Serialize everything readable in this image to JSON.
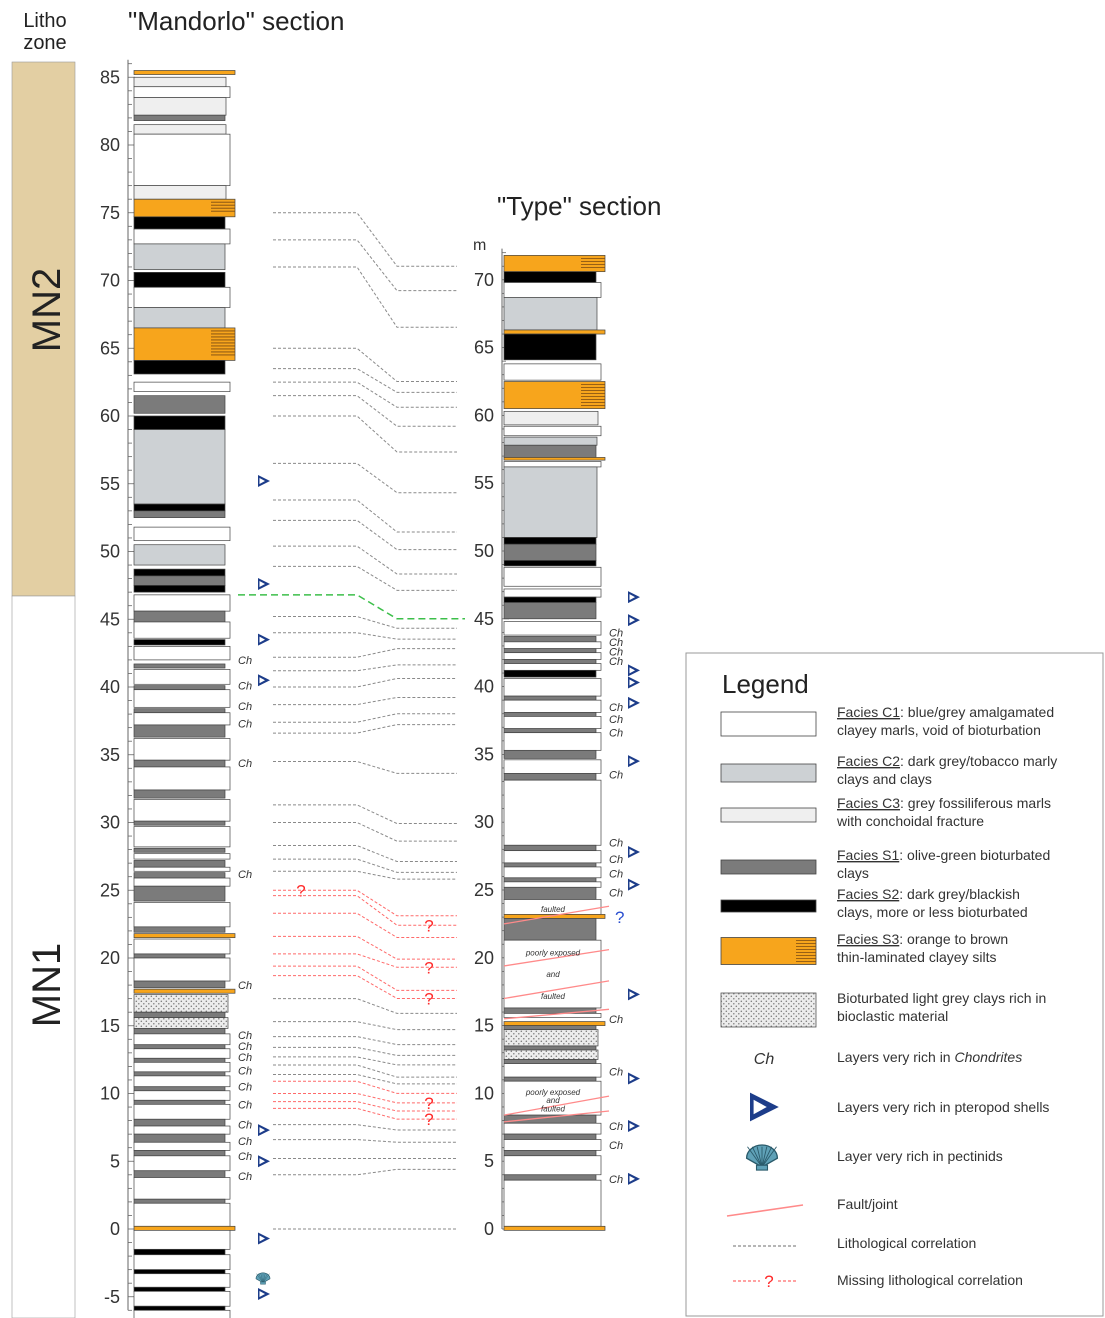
{
  "header": {
    "litho_line1": "Litho",
    "litho_line2": "zone",
    "mandorlo_title": "\"Mandorlo\" section",
    "type_title": "\"Type\" section",
    "type_unit": "m"
  },
  "zones": [
    {
      "label": "MN2",
      "from_m": 47.5,
      "to_m": 87.5,
      "color": "#e3cfa3"
    },
    {
      "label": "MN1",
      "from_m": -7,
      "to_m": 47.5,
      "color": "#ffffff"
    }
  ],
  "colors": {
    "C1": "#ffffff",
    "C2": "#cdd1d4",
    "C3": "#efefef",
    "S1": "#7b7b7b",
    "S2": "#000000",
    "S3": "#f7a51c",
    "lamina": "#7a4a12",
    "bioclastic": "#e8e8e8",
    "correlation": "#8a8a8a",
    "missing": "#ff6a6a",
    "fault": "#ff8a8a",
    "boundary": "#3cbf4a",
    "pteropod": "#1d3d8a",
    "pectinid": "#5fa1b7"
  },
  "mandorlo_ticks": [
    "-5",
    "0",
    "5",
    "10",
    "15",
    "20",
    "25",
    "30",
    "35",
    "40",
    "45",
    "50",
    "55",
    "60",
    "65",
    "70",
    "75",
    "80",
    "85"
  ],
  "type_ticks": [
    "0",
    "5",
    "10",
    "15",
    "20",
    "25",
    "30",
    "35",
    "40",
    "45",
    "50",
    "55",
    "60",
    "65",
    "70"
  ],
  "mandorlo_layers": [
    {
      "facies": "C3",
      "top": 85,
      "bottom": 84.3
    },
    {
      "facies": "S3",
      "top": 85.5,
      "bottom": 85.2
    },
    {
      "facies": "C1",
      "top": 84.3,
      "bottom": 83.5
    },
    {
      "facies": "C3",
      "top": 83.5,
      "bottom": 82.2
    },
    {
      "facies": "S1",
      "top": 82.2,
      "bottom": 81.8
    },
    {
      "facies": "C3",
      "top": 81.5,
      "bottom": 80.8
    },
    {
      "facies": "C1",
      "top": 80.8,
      "bottom": 77
    },
    {
      "facies": "C3",
      "top": 77,
      "bottom": 76
    },
    {
      "facies": "S3",
      "top": 76,
      "bottom": 74.7
    },
    {
      "facies": "S2",
      "top": 74.7,
      "bottom": 73.8
    },
    {
      "facies": "C1",
      "top": 73.8,
      "bottom": 72.7
    },
    {
      "facies": "C2",
      "top": 72.7,
      "bottom": 70.8
    },
    {
      "facies": "S2",
      "top": 70.6,
      "bottom": 69.5
    },
    {
      "facies": "C1",
      "top": 69.5,
      "bottom": 68
    },
    {
      "facies": "C2",
      "top": 68,
      "bottom": 66.5
    },
    {
      "facies": "S3",
      "top": 66.5,
      "bottom": 64.1
    },
    {
      "facies": "S2",
      "top": 64.1,
      "bottom": 63.1
    },
    {
      "facies": "C1",
      "top": 62.5,
      "bottom": 61.8
    },
    {
      "facies": "S1",
      "top": 61.5,
      "bottom": 60.2
    },
    {
      "facies": "S2",
      "top": 60,
      "bottom": 59
    },
    {
      "facies": "C2",
      "top": 59,
      "bottom": 53.5
    },
    {
      "facies": "S2",
      "top": 53.5,
      "bottom": 53
    },
    {
      "facies": "S1",
      "top": 53,
      "bottom": 52.5
    },
    {
      "facies": "C1",
      "top": 51.8,
      "bottom": 50.8
    },
    {
      "facies": "C2",
      "top": 50.5,
      "bottom": 49
    },
    {
      "facies": "S2",
      "top": 48.7,
      "bottom": 48.2
    },
    {
      "facies": "S1",
      "top": 48.2,
      "bottom": 47.5
    },
    {
      "facies": "S2",
      "top": 47.5,
      "bottom": 47
    },
    {
      "facies": "C1",
      "top": 46.8,
      "bottom": 45.6
    },
    {
      "facies": "S1",
      "top": 45.6,
      "bottom": 44.8
    },
    {
      "facies": "C1",
      "top": 44.8,
      "bottom": 43.6
    },
    {
      "facies": "S2",
      "top": 43.5,
      "bottom": 43.1
    },
    {
      "facies": "C1",
      "top": 43,
      "bottom": 42
    },
    {
      "facies": "S1",
      "top": 41.7,
      "bottom": 41.4
    },
    {
      "facies": "C1",
      "top": 41.3,
      "bottom": 40.2
    },
    {
      "facies": "S1",
      "top": 40.1,
      "bottom": 39.8
    },
    {
      "facies": "C1",
      "top": 39.8,
      "bottom": 38.5
    },
    {
      "facies": "S1",
      "top": 38.4,
      "bottom": 38.1
    },
    {
      "facies": "C1",
      "top": 38.1,
      "bottom": 37.2
    },
    {
      "facies": "S1",
      "top": 37.2,
      "bottom": 36.3
    },
    {
      "facies": "C1",
      "top": 36.2,
      "bottom": 34.6
    },
    {
      "facies": "S1",
      "top": 34.6,
      "bottom": 34.1
    },
    {
      "facies": "C1",
      "top": 34.1,
      "bottom": 32.4
    },
    {
      "facies": "S1",
      "top": 32.4,
      "bottom": 31.8
    },
    {
      "facies": "C1",
      "top": 31.7,
      "bottom": 30.1
    },
    {
      "facies": "S1",
      "top": 30.1,
      "bottom": 29.8
    },
    {
      "facies": "C1",
      "top": 29.7,
      "bottom": 28.2
    },
    {
      "facies": "S1",
      "top": 28.1,
      "bottom": 27.8
    },
    {
      "facies": "C1",
      "top": 27.7,
      "bottom": 27.3
    },
    {
      "facies": "S1",
      "top": 27.2,
      "bottom": 26.7
    },
    {
      "facies": "C1",
      "top": 26.7,
      "bottom": 26.4
    },
    {
      "facies": "S1",
      "top": 26.3,
      "bottom": 25.9
    },
    {
      "facies": "C1",
      "top": 25.9,
      "bottom": 25.3
    },
    {
      "facies": "S1",
      "top": 25.3,
      "bottom": 24.2
    },
    {
      "facies": "C1",
      "top": 24.1,
      "bottom": 22.3
    },
    {
      "facies": "S1",
      "top": 22.3,
      "bottom": 21.9
    },
    {
      "facies": "S3",
      "top": 21.8,
      "bottom": 21.5
    },
    {
      "facies": "C1",
      "top": 21.4,
      "bottom": 20.3
    },
    {
      "facies": "S1",
      "top": 20.3,
      "bottom": 20
    },
    {
      "facies": "C1",
      "top": 20,
      "bottom": 18.3
    },
    {
      "facies": "S1",
      "top": 18.3,
      "bottom": 17.8
    },
    {
      "facies": "S3",
      "top": 17.7,
      "bottom": 17.4
    },
    {
      "facies": "BIO",
      "top": 17.3,
      "bottom": 16
    },
    {
      "facies": "S1",
      "top": 16,
      "bottom": 15.6
    },
    {
      "facies": "BIO",
      "top": 15.6,
      "bottom": 14.8
    },
    {
      "facies": "S1",
      "top": 14.8,
      "bottom": 14.4
    },
    {
      "facies": "C1",
      "top": 14.4,
      "bottom": 13.6
    },
    {
      "facies": "S1",
      "top": 13.6,
      "bottom": 13.3
    },
    {
      "facies": "C1",
      "top": 13.3,
      "bottom": 12.6
    },
    {
      "facies": "S1",
      "top": 12.6,
      "bottom": 12.3
    },
    {
      "facies": "C1",
      "top": 12.3,
      "bottom": 11.6
    },
    {
      "facies": "S1",
      "top": 11.6,
      "bottom": 11.3
    },
    {
      "facies": "C1",
      "top": 11.3,
      "bottom": 10.5
    },
    {
      "facies": "S1",
      "top": 10.5,
      "bottom": 10.2
    },
    {
      "facies": "C1",
      "top": 10.2,
      "bottom": 9.5
    },
    {
      "facies": "S1",
      "top": 9.5,
      "bottom": 9.2
    },
    {
      "facies": "C1",
      "top": 9.2,
      "bottom": 8.1
    },
    {
      "facies": "S1",
      "top": 8.1,
      "bottom": 7.6
    },
    {
      "facies": "C1",
      "top": 7.6,
      "bottom": 7
    },
    {
      "facies": "S1",
      "top": 7,
      "bottom": 6.4
    },
    {
      "facies": "C1",
      "top": 6.4,
      "bottom": 5.8
    },
    {
      "facies": "S1",
      "top": 5.8,
      "bottom": 5.4
    },
    {
      "facies": "C1",
      "top": 5.4,
      "bottom": 4.3
    },
    {
      "facies": "S1",
      "top": 4.3,
      "bottom": 3.8
    },
    {
      "facies": "C1",
      "top": 3.8,
      "bottom": 2.2
    },
    {
      "facies": "S1",
      "top": 2.2,
      "bottom": 1.9
    },
    {
      "facies": "C1",
      "top": 1.9,
      "bottom": 0.2
    },
    {
      "facies": "S3",
      "top": 0.2,
      "bottom": -0.1
    },
    {
      "facies": "C1",
      "top": -0.1,
      "bottom": -1.5
    },
    {
      "facies": "S2",
      "top": -1.5,
      "bottom": -1.9
    },
    {
      "facies": "C1",
      "top": -1.9,
      "bottom": -3
    },
    {
      "facies": "S2",
      "top": -3,
      "bottom": -3.3
    },
    {
      "facies": "C1",
      "top": -3.3,
      "bottom": -4.3
    },
    {
      "facies": "S2",
      "top": -4.3,
      "bottom": -4.6
    },
    {
      "facies": "C1",
      "top": -4.6,
      "bottom": -5.7
    },
    {
      "facies": "S2",
      "top": -5.7,
      "bottom": -6
    },
    {
      "facies": "C1",
      "top": -6,
      "bottom": -6.9
    }
  ],
  "type_layers": [
    {
      "facies": "S3",
      "top": 71.8,
      "bottom": 70.6
    },
    {
      "facies": "S2",
      "top": 70.6,
      "bottom": 69.8
    },
    {
      "facies": "C1",
      "top": 69.8,
      "bottom": 68.7
    },
    {
      "facies": "C2",
      "top": 68.7,
      "bottom": 66.3
    },
    {
      "facies": "S3",
      "top": 66.3,
      "bottom": 66
    },
    {
      "facies": "S2",
      "top": 66,
      "bottom": 64.1
    },
    {
      "facies": "C1",
      "top": 63.8,
      "bottom": 62.6
    },
    {
      "facies": "S3",
      "top": 62.5,
      "bottom": 60.5
    },
    {
      "facies": "C3",
      "top": 60.3,
      "bottom": 59.3
    },
    {
      "facies": "C1",
      "top": 59.2,
      "bottom": 58.5
    },
    {
      "facies": "C2",
      "top": 58.4,
      "bottom": 57.8
    },
    {
      "facies": "S1",
      "top": 57.8,
      "bottom": 56.9
    },
    {
      "facies": "S3",
      "top": 56.9,
      "bottom": 56.7
    },
    {
      "facies": "C1",
      "top": 56.6,
      "bottom": 56.2
    },
    {
      "facies": "C2",
      "top": 56.2,
      "bottom": 51
    },
    {
      "facies": "S2",
      "top": 51,
      "bottom": 50.5
    },
    {
      "facies": "S1",
      "top": 50.5,
      "bottom": 49.3
    },
    {
      "facies": "S2",
      "top": 49.3,
      "bottom": 48.9
    },
    {
      "facies": "C1",
      "top": 48.8,
      "bottom": 47.4
    },
    {
      "facies": "C1",
      "top": 47.2,
      "bottom": 46.6
    },
    {
      "facies": "S2",
      "top": 46.6,
      "bottom": 46.2
    },
    {
      "facies": "S1",
      "top": 46.2,
      "bottom": 45
    },
    {
      "facies": "C1",
      "top": 44.8,
      "bottom": 43.8
    },
    {
      "facies": "S1",
      "top": 43.7,
      "bottom": 43.3
    },
    {
      "facies": "C1",
      "top": 43.3,
      "bottom": 42.8
    },
    {
      "facies": "S1",
      "top": 42.8,
      "bottom": 42.5
    },
    {
      "facies": "C1",
      "top": 42.5,
      "bottom": 42
    },
    {
      "facies": "S1",
      "top": 42,
      "bottom": 41.7
    },
    {
      "facies": "C1",
      "top": 41.7,
      "bottom": 41.2
    },
    {
      "facies": "S2",
      "top": 41.2,
      "bottom": 40.7
    },
    {
      "facies": "C1",
      "top": 40.6,
      "bottom": 39.3
    },
    {
      "facies": "S1",
      "top": 39.3,
      "bottom": 39
    },
    {
      "facies": "C1",
      "top": 39,
      "bottom": 38.1
    },
    {
      "facies": "S1",
      "top": 38.1,
      "bottom": 37.8
    },
    {
      "facies": "C1",
      "top": 37.8,
      "bottom": 36.9
    },
    {
      "facies": "S1",
      "top": 36.9,
      "bottom": 36.6
    },
    {
      "facies": "C1",
      "top": 36.6,
      "bottom": 35.3
    },
    {
      "facies": "S1",
      "top": 35.3,
      "bottom": 34.7
    },
    {
      "facies": "C1",
      "top": 34.6,
      "bottom": 33.6
    },
    {
      "facies": "S1",
      "top": 33.6,
      "bottom": 33.1
    },
    {
      "facies": "C1",
      "top": 33.1,
      "bottom": 28.3
    },
    {
      "facies": "S1",
      "top": 28.3,
      "bottom": 27.9
    },
    {
      "facies": "C1",
      "top": 27.9,
      "bottom": 27
    },
    {
      "facies": "S1",
      "top": 27,
      "bottom": 26.7
    },
    {
      "facies": "C1",
      "top": 26.7,
      "bottom": 25.9
    },
    {
      "facies": "S1",
      "top": 25.9,
      "bottom": 25.6
    },
    {
      "facies": "C1",
      "top": 25.6,
      "bottom": 25.2
    },
    {
      "facies": "S1",
      "top": 25.2,
      "bottom": 24.3
    },
    {
      "facies": "C1",
      "top": 24.3,
      "bottom": 23.2
    },
    {
      "facies": "S3",
      "top": 23.2,
      "bottom": 22.9
    },
    {
      "facies": "S1",
      "top": 22.9,
      "bottom": 21.3
    },
    {
      "facies": "C1",
      "top": 21.3,
      "bottom": 16.3
    },
    {
      "facies": "S1",
      "top": 16.3,
      "bottom": 15.9
    },
    {
      "facies": "C1",
      "top": 15.9,
      "bottom": 15.6
    },
    {
      "facies": "S3",
      "top": 15.3,
      "bottom": 15
    },
    {
      "facies": "S1",
      "top": 15,
      "bottom": 14.7
    },
    {
      "facies": "BIO",
      "top": 14.7,
      "bottom": 13.5
    },
    {
      "facies": "S1",
      "top": 13.5,
      "bottom": 13.2
    },
    {
      "facies": "BIO",
      "top": 13.2,
      "bottom": 12.5
    },
    {
      "facies": "S1",
      "top": 12.5,
      "bottom": 12.2
    },
    {
      "facies": "C1",
      "top": 12.2,
      "bottom": 11.2
    },
    {
      "facies": "S1",
      "top": 11.2,
      "bottom": 10.9
    },
    {
      "facies": "C1",
      "top": 10.9,
      "bottom": 8.4
    },
    {
      "facies": "S1",
      "top": 8.4,
      "bottom": 7.8
    },
    {
      "facies": "C1",
      "top": 7.8,
      "bottom": 7
    },
    {
      "facies": "S1",
      "top": 7,
      "bottom": 6.6
    },
    {
      "facies": "C1",
      "top": 6.6,
      "bottom": 5.8
    },
    {
      "facies": "S1",
      "top": 5.8,
      "bottom": 5.4
    },
    {
      "facies": "C1",
      "top": 5.4,
      "bottom": 4
    },
    {
      "facies": "S1",
      "top": 4,
      "bottom": 3.6
    },
    {
      "facies": "C1",
      "top": 3.6,
      "bottom": 0.2
    },
    {
      "facies": "S3",
      "top": 0.2,
      "bottom": -0.1
    }
  ],
  "correlations": [
    {
      "m": 75,
      "t": 71
    },
    {
      "m": 73,
      "t": 69.2
    },
    {
      "m": 71,
      "t": 66.5
    },
    {
      "m": 65,
      "t": 62.5
    },
    {
      "m": 63.5,
      "t": 61.7
    },
    {
      "m": 62.5,
      "t": 60.6
    },
    {
      "m": 61.5,
      "t": 59.2
    },
    {
      "m": 60,
      "t": 57.3
    },
    {
      "m": 56.5,
      "t": 54.3
    },
    {
      "m": 53.8,
      "t": 51.4
    },
    {
      "m": 52.3,
      "t": 50.1
    },
    {
      "m": 50.4,
      "t": 48.3
    },
    {
      "m": 48.9,
      "t": 47.1
    },
    {
      "m": 45.2,
      "t": 44.3
    },
    {
      "m": 44,
      "t": 43.5
    },
    {
      "m": 42.2,
      "t": 42.8
    },
    {
      "m": 41.2,
      "t": 41.6
    },
    {
      "m": 40,
      "t": 40.6
    },
    {
      "m": 38.7,
      "t": 39.2
    },
    {
      "m": 37.4,
      "t": 38
    },
    {
      "m": 36.6,
      "t": 37.2
    },
    {
      "m": 34.5,
      "t": 33.6
    },
    {
      "m": 31.3,
      "t": 29.9
    },
    {
      "m": 30,
      "t": 28.6
    },
    {
      "m": 28.3,
      "t": 27.1
    },
    {
      "m": 27.3,
      "t": 26.3
    },
    {
      "m": 26.4,
      "t": 25.8
    },
    {
      "m": 17,
      "t": 15.9
    },
    {
      "m": 15.3,
      "t": 14.7
    },
    {
      "m": 14.2,
      "t": 13.6
    },
    {
      "m": 13.4,
      "t": 12.8
    },
    {
      "m": 12.7,
      "t": 12.1
    },
    {
      "m": 12.1,
      "t": 11.2
    },
    {
      "m": 11.4,
      "t": 10.7
    },
    {
      "m": 7.7,
      "t": 7.3
    },
    {
      "m": 6.6,
      "t": 6.4
    },
    {
      "m": 5.2,
      "t": 5.2
    },
    {
      "m": 4,
      "t": 4.4
    },
    {
      "m": 0,
      "t": 0
    }
  ],
  "missing_correlations": [
    {
      "m": 25,
      "t": 23.1,
      "qm": true,
      "qt": false
    },
    {
      "m": 24.6,
      "t": 22.4,
      "qm": false,
      "qt": true
    },
    {
      "m": 23.3,
      "t": 21.5,
      "qm": false,
      "qt": false
    },
    {
      "m": 21.6,
      "t": 19.9,
      "qm": false,
      "qt": false
    },
    {
      "m": 20.3,
      "t": 19.3,
      "qm": false,
      "qt": true
    },
    {
      "m": 19.4,
      "t": 17.6,
      "qm": false,
      "qt": false
    },
    {
      "m": 18.7,
      "t": 17,
      "qm": false,
      "qt": true
    },
    {
      "m": 10.9,
      "t": 10,
      "qm": false,
      "qt": false
    },
    {
      "m": 10,
      "t": 9.3,
      "qm": false,
      "qt": true
    },
    {
      "m": 9.4,
      "t": 8.7,
      "qm": false,
      "qt": false
    },
    {
      "m": 8.9,
      "t": 8.1,
      "qm": false,
      "qt": true
    }
  ],
  "boundary_correlation": {
    "m": 46.8,
    "t": 45
  },
  "mandorlo_ch_marks": [
    42,
    40.1,
    38.6,
    37.3,
    34.4,
    26.2,
    18,
    14.3,
    13.5,
    12.7,
    11.7,
    10.5,
    9.2,
    7.7,
    6.5,
    5.4,
    3.9
  ],
  "type_ch_marks": [
    44,
    43.3,
    42.6,
    41.9,
    38.5,
    37.6,
    36.6,
    33.5,
    28.5,
    27.3,
    26.2,
    24.8,
    15.5,
    11.6,
    7.6,
    6.2,
    3.7
  ],
  "mandorlo_pteropods": [
    55.2,
    47.6,
    43.5,
    40.5,
    7.3,
    5,
    -0.7,
    -4.8
  ],
  "type_pteropods": [
    46.6,
    44.9,
    41.2,
    40.3,
    38.8,
    34.5,
    27.8,
    25.4,
    17.3,
    11.1,
    7.6,
    3.7
  ],
  "mandorlo_pectinids": [
    -3.6
  ],
  "type_question_mark": {
    "m": 23,
    "text": "?"
  },
  "faults": [
    {
      "y1": 22.5,
      "y2": 23.8
    },
    {
      "y1": 19.4,
      "y2": 20.6
    },
    {
      "y1": 17,
      "y2": 18.3
    },
    {
      "y1": 15.5,
      "y2": 16.2
    },
    {
      "y1": 8.4,
      "y2": 9.8
    },
    {
      "y1": 7.9,
      "y2": 8.7
    }
  ],
  "type_notes": [
    {
      "m": 23.6,
      "text": "faulted"
    },
    {
      "m": 20.4,
      "text": "poorly exposed"
    },
    {
      "m": 18.8,
      "text": "and"
    },
    {
      "m": 17.2,
      "text": "faulted"
    },
    {
      "m": 10.1,
      "text": "poorly exposed"
    },
    {
      "m": 9.5,
      "text": "and"
    },
    {
      "m": 8.9,
      "text": "faulted"
    }
  ],
  "ch_label": "Ch",
  "q_label": "?",
  "legend": {
    "title": "Legend",
    "entries": [
      {
        "key": "C1",
        "name": "Facies C1",
        "desc1": ": blue/grey amalgamated",
        "desc2": "clayey marls, void of bioturbation"
      },
      {
        "key": "C2",
        "name": "Facies C2",
        "desc1": ": dark grey/tobacco marly",
        "desc2": "clays and clays"
      },
      {
        "key": "C3",
        "name": "Facies C3",
        "desc1": ": grey fossiliferous marls",
        "desc2": "with conchoidal fracture"
      },
      {
        "key": "S1",
        "name": "Facies S1",
        "desc1": ": olive-green bioturbated",
        "desc2": "clays"
      },
      {
        "key": "S2",
        "name": "Facies S2",
        "desc1": ": dark grey/blackish",
        "desc2": "clays, more or less bioturbated"
      },
      {
        "key": "S3",
        "name": "Facies S3",
        "desc1": ": orange to brown",
        "desc2": "thin-laminated clayey silts"
      }
    ],
    "bioclastic_1": "Bioturbated light grey clays rich in",
    "bioclastic_2": "bioclastic material",
    "chondrites_pre": "Layers very rich in ",
    "chondrites_word": "Chondrites",
    "pteropod": "Layers very rich in pteropod shells",
    "pectinid": "Layer very rich in pectinids",
    "fault": "Fault/joint",
    "litho_corr": "Lithological correlation",
    "missing_corr": "Missing lithological correlation"
  }
}
